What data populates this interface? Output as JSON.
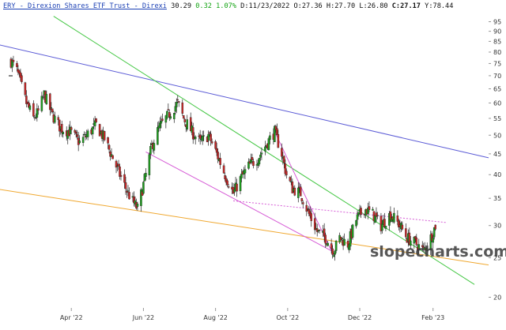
{
  "header": {
    "symbol": "ERY",
    "name": " - Direxion Shares ETF Trust - Direxi",
    "last": "30.29",
    "change": "0.32",
    "change_pct": "1.07%",
    "date_label": "D:",
    "date": "11/23/2022",
    "open_label": "O:",
    "open": "27.36",
    "high_label": "H:",
    "high": "27.70",
    "low_label": "L:",
    "low": "26.80",
    "close_label": "C:",
    "close": "27.17",
    "y_label": "Y:",
    "y_value": "78.44"
  },
  "watermark": "slopecharts.com",
  "colors": {
    "up_candle": "#1f9d1f",
    "down_candle": "#c62828",
    "wick": "#222222",
    "blue_trend": "#5b5bd6",
    "green_trend": "#44c744",
    "orange_trend": "#f0a830",
    "magenta_trend": "#d65bd6",
    "axis": "#999999"
  },
  "chart_data": {
    "type": "candlestick",
    "y_scale": "log",
    "ylim": [
      19,
      100
    ],
    "x_start": "2022-02-01",
    "x_end": "2023-03-20",
    "y_ticks": [
      20,
      25,
      30,
      35,
      40,
      45,
      50,
      55,
      60,
      65,
      70,
      75,
      80,
      85,
      90,
      95
    ],
    "x_ticks": [
      {
        "label": "Apr '22",
        "date": "2022-04-01"
      },
      {
        "label": "Jun '22",
        "date": "2022-06-01"
      },
      {
        "label": "Aug '22",
        "date": "2022-08-01"
      },
      {
        "label": "Oct '22",
        "date": "2022-10-01"
      },
      {
        "label": "Dec '22",
        "date": "2022-12-01"
      },
      {
        "label": "Feb '23",
        "date": "2023-02-01"
      }
    ],
    "anchors": [
      [
        "2022-02-09",
        76
      ],
      [
        "2022-02-14",
        72
      ],
      [
        "2022-02-22",
        60
      ],
      [
        "2022-02-28",
        55
      ],
      [
        "2022-03-04",
        57
      ],
      [
        "2022-03-09",
        63
      ],
      [
        "2022-03-16",
        56
      ],
      [
        "2022-03-23",
        52
      ],
      [
        "2022-03-31",
        51
      ],
      [
        "2022-04-08",
        48
      ],
      [
        "2022-04-14",
        50
      ],
      [
        "2022-04-22",
        53
      ],
      [
        "2022-04-29",
        49
      ],
      [
        "2022-05-06",
        44
      ],
      [
        "2022-05-12",
        40
      ],
      [
        "2022-05-19",
        36
      ],
      [
        "2022-05-24",
        34
      ],
      [
        "2022-05-27",
        33
      ],
      [
        "2022-06-03",
        40
      ],
      [
        "2022-06-08",
        47
      ],
      [
        "2022-06-14",
        52
      ],
      [
        "2022-06-20",
        55
      ],
      [
        "2022-06-24",
        57
      ],
      [
        "2022-06-30",
        60
      ],
      [
        "2022-07-05",
        55
      ],
      [
        "2022-07-12",
        51
      ],
      [
        "2022-07-19",
        48
      ],
      [
        "2022-07-26",
        50
      ],
      [
        "2022-08-02",
        45
      ],
      [
        "2022-08-09",
        40
      ],
      [
        "2022-08-16",
        36
      ],
      [
        "2022-08-22",
        39
      ],
      [
        "2022-08-29",
        42
      ],
      [
        "2022-09-06",
        44
      ],
      [
        "2022-09-14",
        48
      ],
      [
        "2022-09-20",
        51
      ],
      [
        "2022-09-26",
        45
      ],
      [
        "2022-09-30",
        40
      ],
      [
        "2022-10-05",
        37
      ],
      [
        "2022-10-12",
        36
      ],
      [
        "2022-10-19",
        32
      ],
      [
        "2022-10-26",
        29
      ],
      [
        "2022-11-02",
        28
      ],
      [
        "2022-11-09",
        26
      ],
      [
        "2022-11-14",
        28
      ],
      [
        "2022-11-21",
        27
      ],
      [
        "2022-11-28",
        31
      ],
      [
        "2022-12-05",
        33
      ],
      [
        "2022-12-12",
        32
      ],
      [
        "2022-12-19",
        30
      ],
      [
        "2022-12-27",
        32
      ],
      [
        "2023-01-04",
        30
      ],
      [
        "2023-01-10",
        28
      ],
      [
        "2023-01-18",
        27
      ],
      [
        "2023-01-24",
        26
      ],
      [
        "2023-01-30",
        28
      ],
      [
        "2023-02-03",
        30
      ]
    ],
    "trendlines": [
      {
        "color_key": "blue_trend",
        "from": [
          "2022-01-25",
          84
        ],
        "to": [
          "2023-03-20",
          44
        ]
      },
      {
        "color_key": "green_trend",
        "from": [
          "2022-03-17",
          98
        ],
        "to": [
          "2023-03-08",
          21.5
        ]
      },
      {
        "color_key": "orange_trend",
        "from": [
          "2022-01-25",
          37
        ],
        "to": [
          "2023-03-20",
          24
        ]
      },
      {
        "color_key": "magenta_trend",
        "from": [
          "2022-06-03",
          45.5
        ],
        "to": [
          "2022-08-16",
          35
        ]
      },
      {
        "color_key": "magenta_trend",
        "from": [
          "2022-08-16",
          35
        ],
        "to": [
          "2022-11-07",
          26
        ]
      },
      {
        "color_key": "magenta_trend",
        "from": [
          "2022-09-20",
          51
        ],
        "to": [
          "2022-11-07",
          26
        ]
      },
      {
        "color_key": "magenta_trend",
        "from": [
          "2022-08-16",
          34.5
        ],
        "to": [
          "2023-02-13",
          30.5
        ],
        "dashed": true
      }
    ]
  }
}
